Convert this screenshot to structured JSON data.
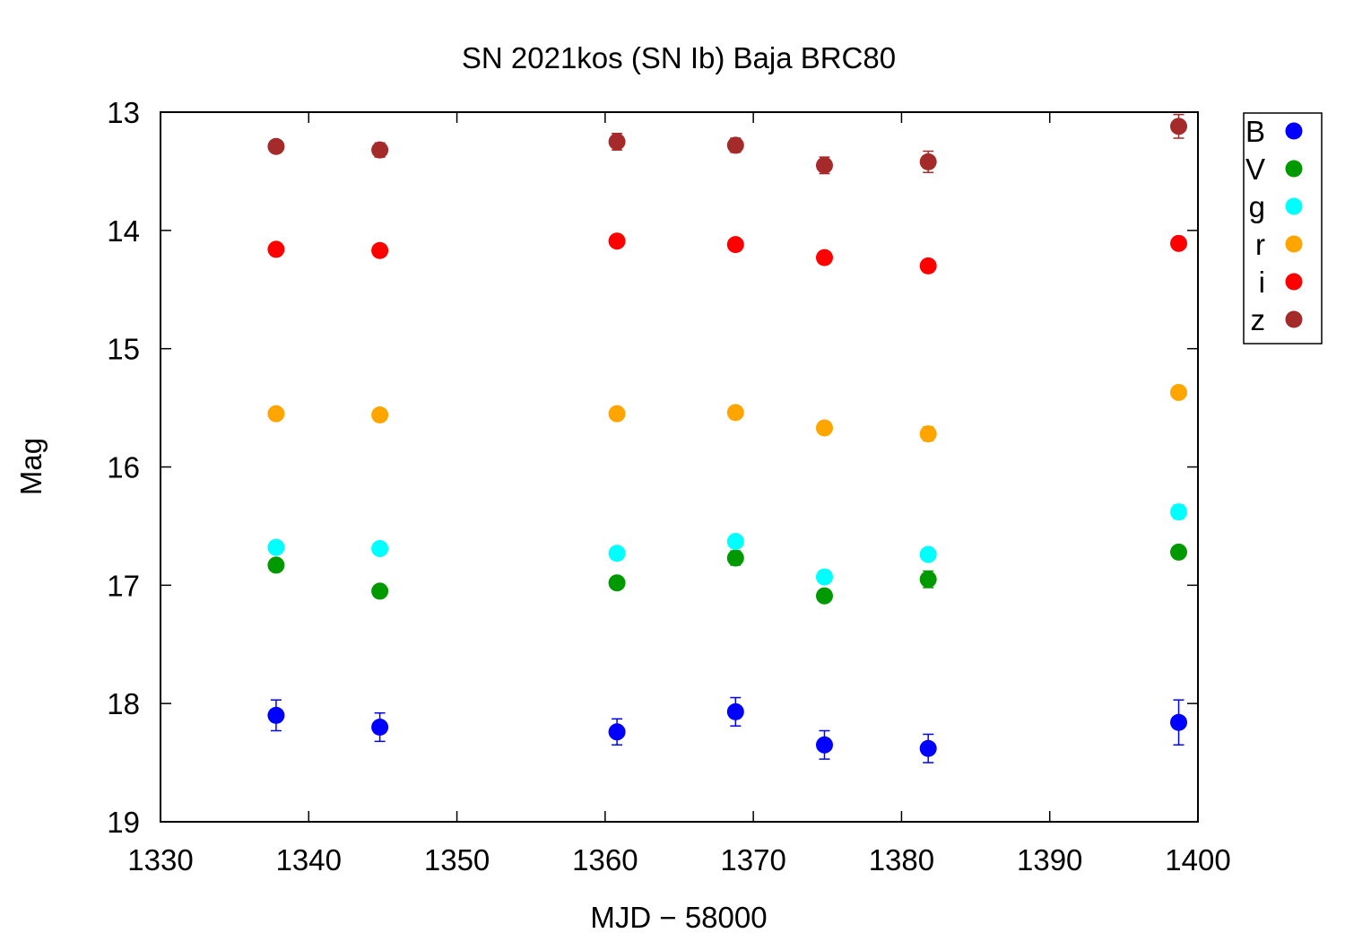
{
  "chart_data": {
    "type": "scatter",
    "title": "SN 2021kos (SN Ib) Baja BRC80",
    "xlabel": "MJD − 58000",
    "ylabel": "Mag",
    "xlim": [
      1330,
      1400
    ],
    "ylim": [
      19,
      13
    ],
    "y_inverted": true,
    "grid": false,
    "legend_position": "outside-top-right",
    "x_ticks": [
      1330,
      1340,
      1350,
      1360,
      1370,
      1380,
      1390,
      1400
    ],
    "y_ticks": [
      13,
      14,
      15,
      16,
      17,
      18,
      19
    ],
    "series": [
      {
        "name": "B",
        "color": "#0000ff",
        "points": [
          {
            "x": 1337.8,
            "y": 18.1,
            "err": 0.13
          },
          {
            "x": 1344.8,
            "y": 18.2,
            "err": 0.12
          },
          {
            "x": 1360.8,
            "y": 18.24,
            "err": 0.11
          },
          {
            "x": 1368.8,
            "y": 18.07,
            "err": 0.12
          },
          {
            "x": 1374.8,
            "y": 18.35,
            "err": 0.12
          },
          {
            "x": 1381.8,
            "y": 18.38,
            "err": 0.12
          },
          {
            "x": 1398.7,
            "y": 18.16,
            "err": 0.19
          }
        ]
      },
      {
        "name": "V",
        "color": "#009900",
        "points": [
          {
            "x": 1337.8,
            "y": 16.83,
            "err": 0.05
          },
          {
            "x": 1344.8,
            "y": 17.05,
            "err": 0.04
          },
          {
            "x": 1360.8,
            "y": 16.98,
            "err": 0.05
          },
          {
            "x": 1368.8,
            "y": 16.77,
            "err": 0.06
          },
          {
            "x": 1374.8,
            "y": 17.09,
            "err": 0.05
          },
          {
            "x": 1381.8,
            "y": 16.95,
            "err": 0.07
          },
          {
            "x": 1398.7,
            "y": 16.72,
            "err": 0.05
          }
        ]
      },
      {
        "name": "g",
        "color": "#00ffff",
        "points": [
          {
            "x": 1337.8,
            "y": 16.68,
            "err": 0.04
          },
          {
            "x": 1344.8,
            "y": 16.69,
            "err": 0.04
          },
          {
            "x": 1360.8,
            "y": 16.73,
            "err": 0.04
          },
          {
            "x": 1368.8,
            "y": 16.63,
            "err": 0.05
          },
          {
            "x": 1374.8,
            "y": 16.93,
            "err": 0.05
          },
          {
            "x": 1381.8,
            "y": 16.74,
            "err": 0.04
          },
          {
            "x": 1398.7,
            "y": 16.38,
            "err": 0.06
          }
        ]
      },
      {
        "name": "r",
        "color": "#ffa500",
        "points": [
          {
            "x": 1337.8,
            "y": 15.55,
            "err": 0.04
          },
          {
            "x": 1344.8,
            "y": 15.56,
            "err": 0.04
          },
          {
            "x": 1360.8,
            "y": 15.55,
            "err": 0.05
          },
          {
            "x": 1368.8,
            "y": 15.54,
            "err": 0.04
          },
          {
            "x": 1374.8,
            "y": 15.67,
            "err": 0.05
          },
          {
            "x": 1381.8,
            "y": 15.72,
            "err": 0.06
          },
          {
            "x": 1398.7,
            "y": 15.37,
            "err": 0.04
          }
        ]
      },
      {
        "name": "i",
        "color": "#ff0000",
        "points": [
          {
            "x": 1337.8,
            "y": 14.16,
            "err": 0.03
          },
          {
            "x": 1344.8,
            "y": 14.17,
            "err": 0.03
          },
          {
            "x": 1360.8,
            "y": 14.09,
            "err": 0.03
          },
          {
            "x": 1368.8,
            "y": 14.12,
            "err": 0.03
          },
          {
            "x": 1374.8,
            "y": 14.23,
            "err": 0.03
          },
          {
            "x": 1381.8,
            "y": 14.3,
            "err": 0.03
          },
          {
            "x": 1398.7,
            "y": 14.11,
            "err": 0.03
          }
        ]
      },
      {
        "name": "z",
        "color": "#a52a2a",
        "points": [
          {
            "x": 1337.8,
            "y": 13.29,
            "err": 0.04
          },
          {
            "x": 1344.8,
            "y": 13.32,
            "err": 0.06
          },
          {
            "x": 1360.8,
            "y": 13.25,
            "err": 0.07
          },
          {
            "x": 1368.8,
            "y": 13.28,
            "err": 0.06
          },
          {
            "x": 1374.8,
            "y": 13.45,
            "err": 0.07
          },
          {
            "x": 1381.8,
            "y": 13.42,
            "err": 0.09
          },
          {
            "x": 1398.7,
            "y": 13.12,
            "err": 0.1
          }
        ]
      }
    ]
  }
}
